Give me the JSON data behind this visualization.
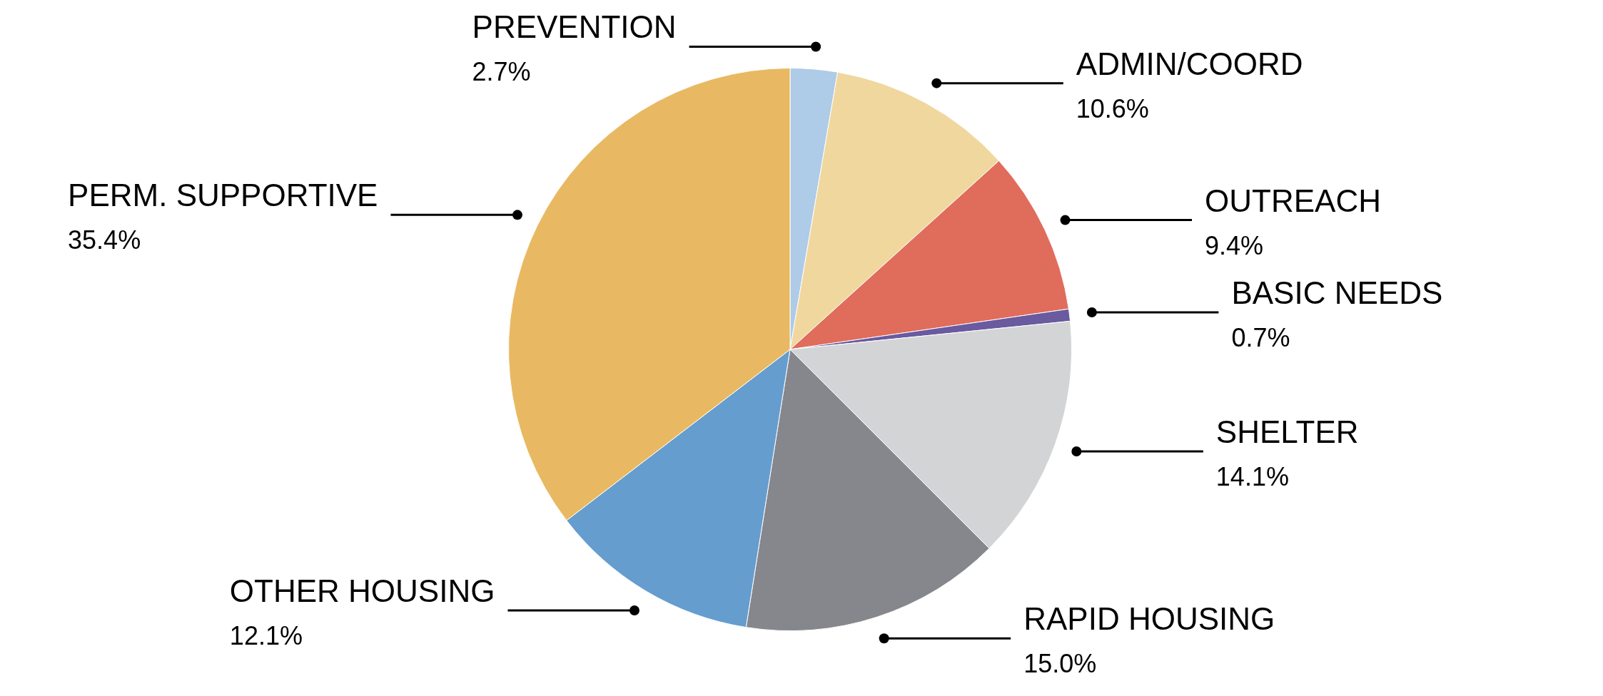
{
  "chart_data": {
    "type": "pie",
    "categories": [
      "PREVENTION",
      "ADMIN/COORD",
      "OUTREACH",
      "BASIC NEEDS",
      "SHELTER",
      "RAPID HOUSING",
      "OTHER HOUSING",
      "PERM. SUPPORTIVE"
    ],
    "values": [
      2.7,
      10.6,
      9.4,
      0.7,
      14.1,
      15.0,
      12.1,
      35.4
    ],
    "colors": [
      "#aecbe8",
      "#f0d79e",
      "#e06c5c",
      "#6a5aa0",
      "#d3d4d6",
      "#86878c",
      "#659dcf",
      "#e8b962"
    ],
    "value_labels": [
      "2.7%",
      "10.6%",
      "9.4%",
      "0.7%",
      "14.1%",
      "15.0%",
      "12.1%",
      "35.4%"
    ]
  }
}
